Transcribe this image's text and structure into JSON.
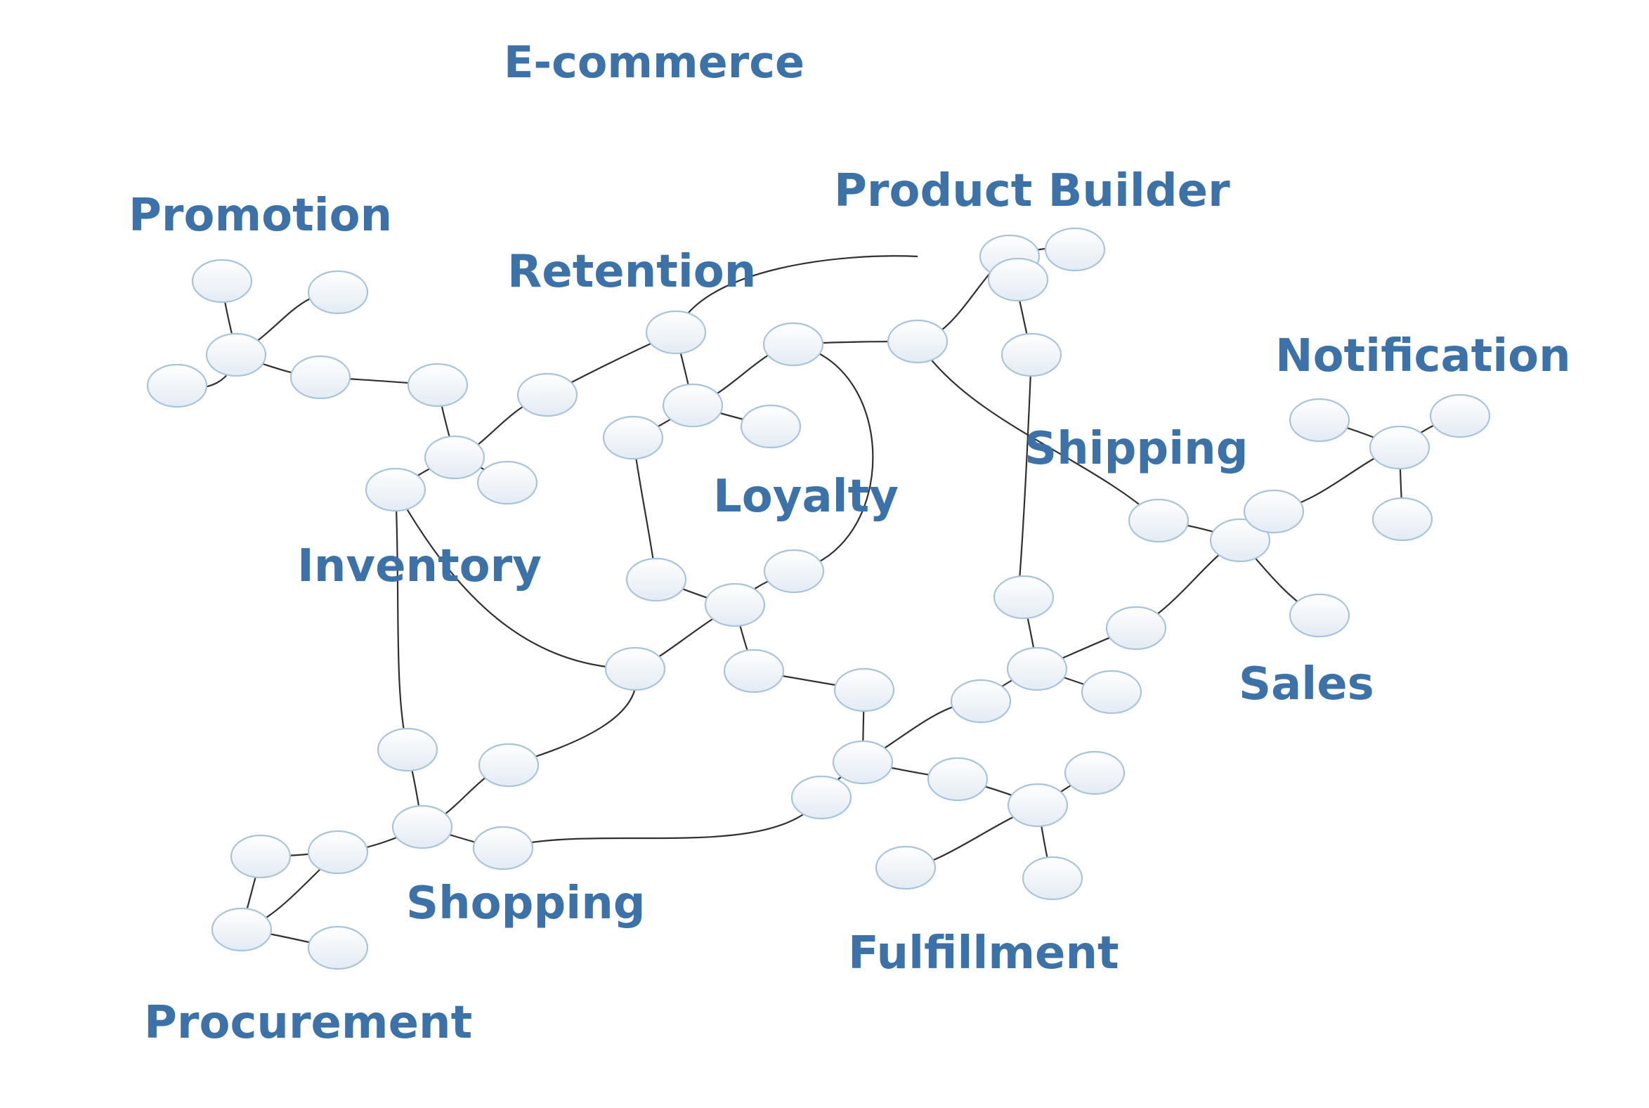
{
  "diagram": {
    "title": "E-commerce",
    "domains": [
      {
        "id": "promotion",
        "label": "Promotion"
      },
      {
        "id": "retention",
        "label": "Retention"
      },
      {
        "id": "product-builder",
        "label": "Product Builder"
      },
      {
        "id": "notification",
        "label": "Notification"
      },
      {
        "id": "shipping",
        "label": "Shipping"
      },
      {
        "id": "loyalty",
        "label": "Loyalty"
      },
      {
        "id": "inventory",
        "label": "Inventory"
      },
      {
        "id": "sales",
        "label": "Sales"
      },
      {
        "id": "shopping",
        "label": "Shopping"
      },
      {
        "id": "fulfillment",
        "label": "Fulfillment"
      },
      {
        "id": "procurement",
        "label": "Procurement"
      }
    ],
    "colors": {
      "label": "#3d72a8",
      "node_fill_top": "#ffffff",
      "node_fill_bottom": "#e3ebf3",
      "node_stroke": "#a9c3dc",
      "edge": "#303030",
      "background": "#ffffff"
    }
  }
}
